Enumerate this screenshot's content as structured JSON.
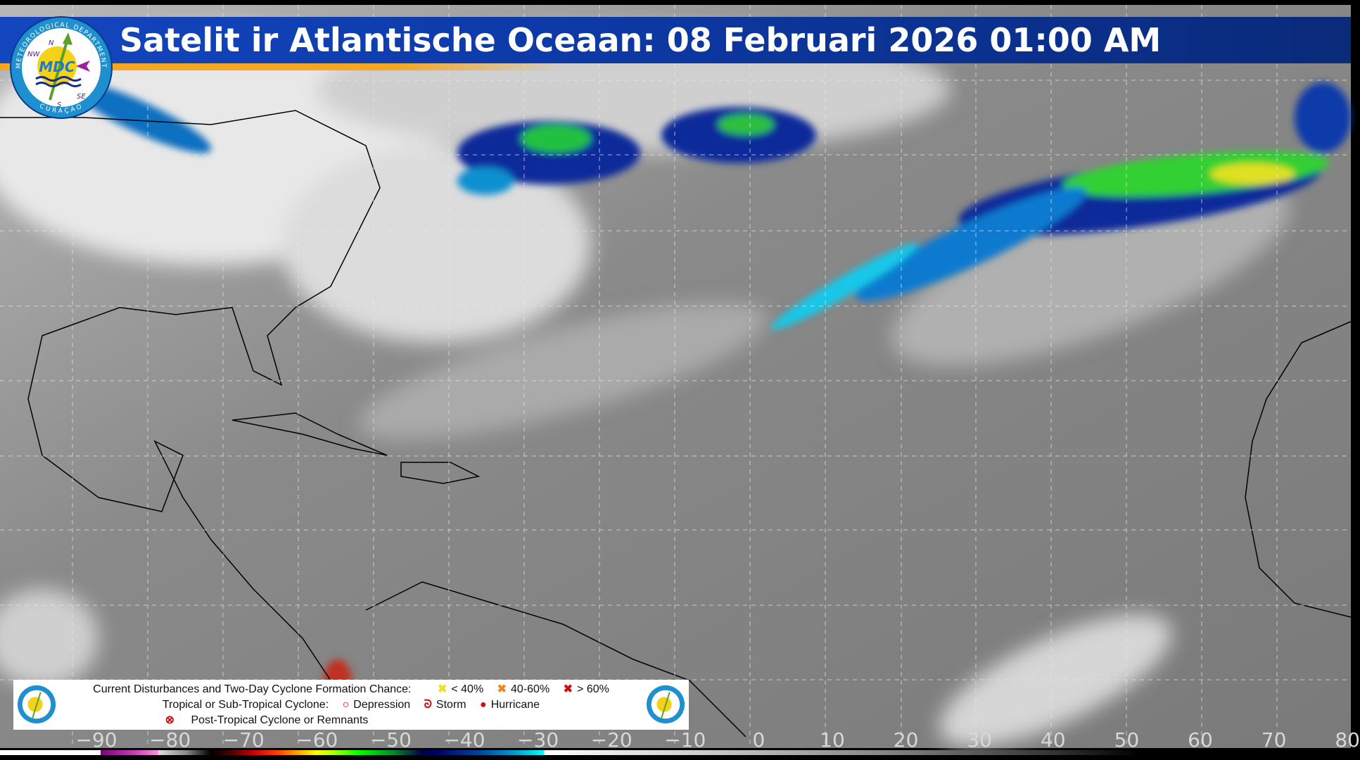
{
  "header": {
    "title": "Satelit ir Atlantische Oceaan: 08 Februari 2026 01:00 AM",
    "logo_text": "MDC",
    "logo_ring_top": "METEOROLOGICAL DEPARTMENT",
    "logo_ring_bottom": "CURAÇAO",
    "logo_compass": [
      "N",
      "NW",
      "SE",
      "S"
    ]
  },
  "longitude_labels": [
    "−90",
    "−80",
    "−70",
    "−60",
    "−50",
    "−40",
    "−30",
    "−20",
    "−10",
    "0",
    "10",
    "20",
    "30",
    "40",
    "50",
    "60",
    "70",
    "80"
  ],
  "legend": {
    "line1_label": "Current Disturbances and Two-Day Cyclone Formation Chance:",
    "chance_low": "< 40%",
    "chance_mid": "40-60%",
    "chance_high": "> 60%",
    "line2_label": "Tropical or Sub-Tropical Cyclone:",
    "depression": "Depression",
    "storm": "Storm",
    "hurricane": "Hurricane",
    "post_tropical": "Post-Tropical Cyclone or Remnants"
  },
  "colors": {
    "banner": "#1446c0",
    "stripe": "#f5a623",
    "low": "#f0e020",
    "mid": "#f08a20",
    "high": "#d01010",
    "cyclone": "#d01010"
  }
}
